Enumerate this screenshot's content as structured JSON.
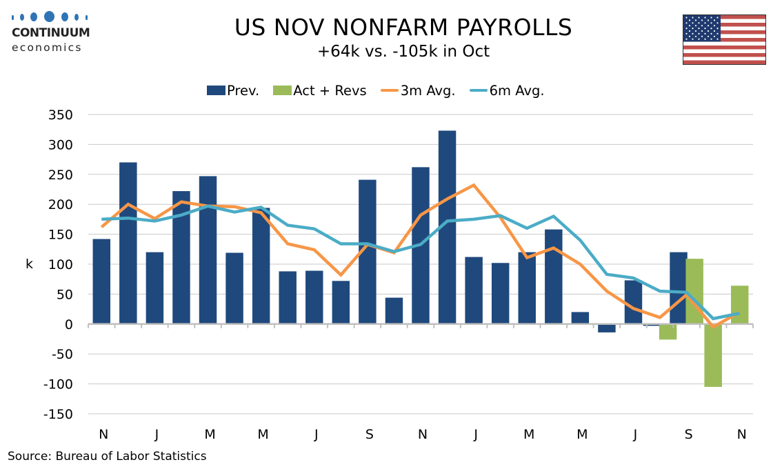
{
  "brand": {
    "logo_line1": "CONTINUUM",
    "logo_line2": "economics",
    "logo_color": "#2f74b5"
  },
  "header": {
    "title": "US NOV NONFARM PAYROLLS",
    "subtitle": "+64k vs. -105k in Oct",
    "flag": "us-flag-icon"
  },
  "footer": {
    "source": "Source: Bureau of Labor Statistics"
  },
  "colors": {
    "prev": "#1f497d",
    "act": "#9bbb59",
    "avg3": "#f79646",
    "avg6": "#4bacc6",
    "grid": "#c8c8c8",
    "axis": "#bfbfbf"
  },
  "chart_data": {
    "type": "bar",
    "title": "US NOV NONFARM PAYROLLS",
    "subtitle": "+64k vs. -105k in Oct",
    "xlabel": "",
    "ylabel": "k",
    "ylim": [
      -150,
      350
    ],
    "yticks": [
      350,
      300,
      250,
      200,
      150,
      100,
      50,
      0,
      -50,
      -100,
      -150
    ],
    "grid": true,
    "legend_position": "top-center",
    "categories": [
      "N",
      "D",
      "J",
      "F",
      "M",
      "A",
      "M",
      "J",
      "J",
      "A",
      "S",
      "O",
      "N",
      "D",
      "J",
      "F",
      "M",
      "A",
      "M",
      "J",
      "J",
      "A",
      "S",
      "O",
      "N"
    ],
    "xtick_labels": [
      {
        "index": 0,
        "label": "N"
      },
      {
        "index": 2,
        "label": "J"
      },
      {
        "index": 4,
        "label": "M"
      },
      {
        "index": 6,
        "label": "M"
      },
      {
        "index": 8,
        "label": "J"
      },
      {
        "index": 10,
        "label": "S"
      },
      {
        "index": 12,
        "label": "N"
      },
      {
        "index": 14,
        "label": "J"
      },
      {
        "index": 16,
        "label": "M"
      },
      {
        "index": 18,
        "label": "M"
      },
      {
        "index": 20,
        "label": "J"
      },
      {
        "index": 22,
        "label": "S"
      },
      {
        "index": 24,
        "label": "N"
      }
    ],
    "series": [
      {
        "name": "Prev.",
        "kind": "bar",
        "values": [
          142,
          270,
          120,
          222,
          247,
          119,
          194,
          88,
          89,
          72,
          241,
          44,
          262,
          323,
          112,
          102,
          120,
          158,
          20,
          -14,
          73,
          -3,
          120,
          null,
          null
        ]
      },
      {
        "name": "Act + Revs",
        "kind": "bar",
        "values": [
          null,
          null,
          null,
          null,
          null,
          null,
          null,
          null,
          null,
          null,
          null,
          null,
          null,
          null,
          null,
          null,
          null,
          null,
          null,
          null,
          null,
          -26,
          109,
          -105,
          64
        ]
      },
      {
        "name": "3m Avg.",
        "kind": "line",
        "values": [
          162,
          200,
          176,
          204,
          197,
          196,
          186,
          134,
          124,
          82,
          133,
          119,
          182,
          209,
          232,
          178,
          111,
          127,
          100,
          55,
          26,
          11,
          49,
          -5,
          20
        ]
      },
      {
        "name": "6m Avg.",
        "kind": "line",
        "values": [
          175,
          177,
          172,
          182,
          197,
          187,
          195,
          165,
          159,
          134,
          134,
          121,
          133,
          172,
          175,
          181,
          160,
          180,
          140,
          83,
          77,
          55,
          53,
          9,
          18
        ]
      }
    ]
  }
}
